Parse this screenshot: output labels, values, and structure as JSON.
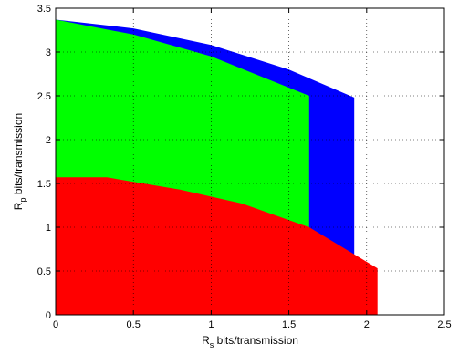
{
  "chart_data": {
    "type": "area",
    "title": "",
    "xlabel": {
      "main": "R",
      "sub": "s",
      "rest": " bits/transmission"
    },
    "ylabel": {
      "main": "R",
      "sub": "p",
      "rest": " bits/transmission"
    },
    "xlim": [
      0,
      2.5
    ],
    "ylim": [
      0,
      3.5
    ],
    "x_ticks": [
      "0",
      "0.5",
      "1",
      "1.5",
      "2",
      "2.5"
    ],
    "y_ticks": [
      "0",
      "0.5",
      "1",
      "1.5",
      "2",
      "2.5",
      "3",
      "3.5"
    ],
    "grid": true,
    "legend": "none",
    "series": [
      {
        "color": "#0000ff",
        "polygon": [
          [
            0,
            0
          ],
          [
            0,
            3.37
          ],
          [
            0.5,
            3.27
          ],
          [
            1.0,
            3.08
          ],
          [
            1.5,
            2.8
          ],
          [
            1.92,
            2.48
          ],
          [
            1.92,
            0
          ],
          [
            0,
            0
          ]
        ]
      },
      {
        "color": "#00ff00",
        "polygon": [
          [
            0,
            0
          ],
          [
            0,
            3.37
          ],
          [
            0.5,
            3.2
          ],
          [
            1.0,
            2.95
          ],
          [
            1.63,
            2.5
          ],
          [
            1.63,
            0
          ],
          [
            0,
            0
          ]
        ]
      },
      {
        "color": "#ff0000",
        "polygon": [
          [
            0,
            0
          ],
          [
            0,
            1.57
          ],
          [
            0.33,
            1.57
          ],
          [
            0.8,
            1.43
          ],
          [
            1.2,
            1.27
          ],
          [
            1.63,
            1.0
          ],
          [
            2.07,
            0.53
          ],
          [
            2.07,
            0
          ],
          [
            0,
            0
          ]
        ]
      }
    ]
  }
}
